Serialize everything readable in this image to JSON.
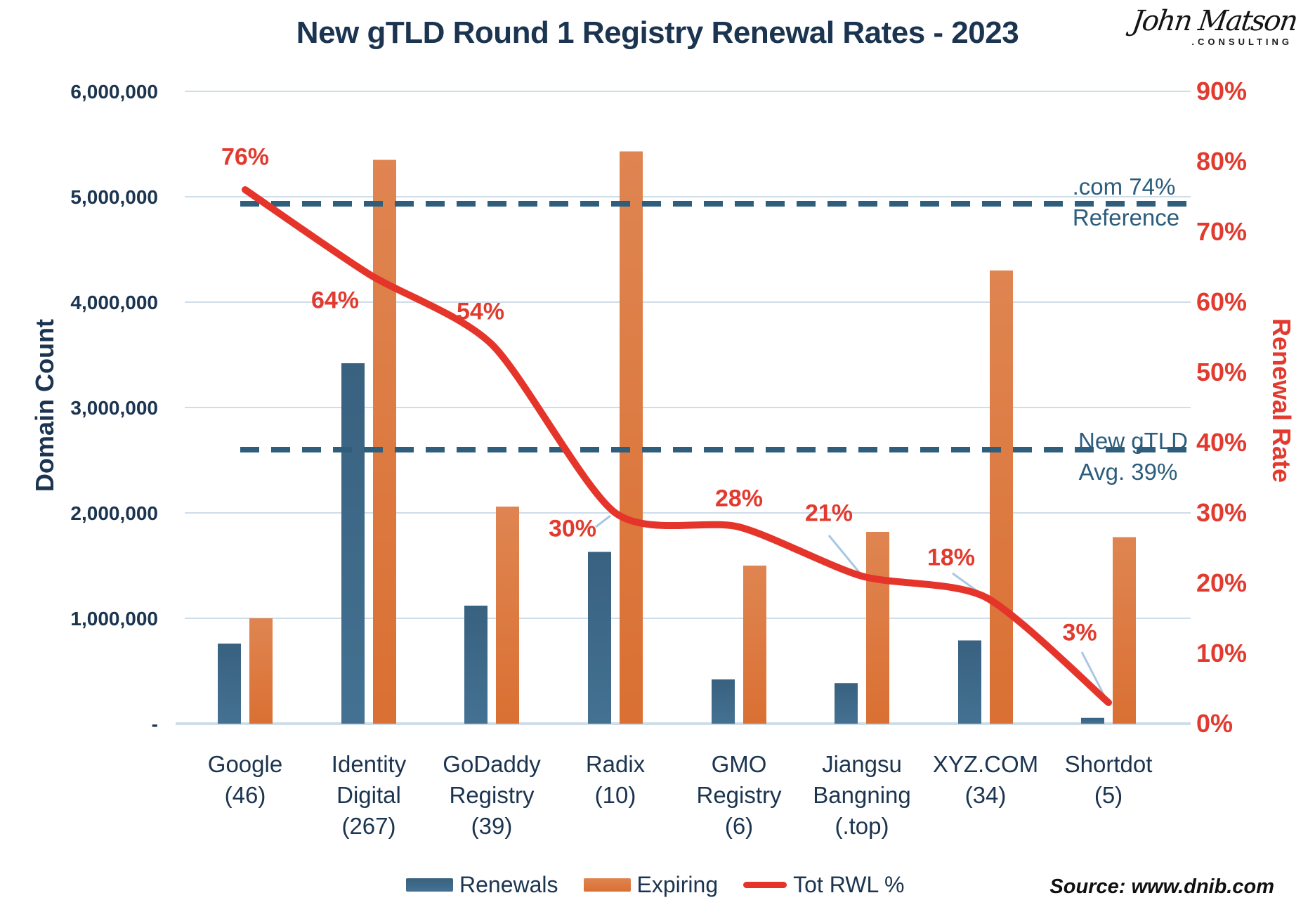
{
  "title": "New gTLD Round 1 Registry Renewal Rates - 2023",
  "logo": {
    "name": "John Matson",
    "suffix": ".CONSULTING"
  },
  "source": "Source: www.dnib.com",
  "colors": {
    "navy_text": "#1b3450",
    "teal_dashed": "#2e5e7c",
    "red": "#e5352b",
    "bar_blue": "#3d6888",
    "bar_orange": "#dc7a42",
    "gridline": "#cfdde9",
    "leader": "#a9c7e4"
  },
  "chart_data": {
    "type": "combo-bar-line",
    "title": "New gTLD Round 1 Registry Renewal Rates - 2023",
    "categories": [
      [
        "Google",
        "(46)"
      ],
      [
        "Identity",
        "Digital",
        "(267)"
      ],
      [
        "GoDaddy",
        "Registry",
        "(39)"
      ],
      [
        "Radix",
        "(10)"
      ],
      [
        "GMO",
        "Registry",
        "(6)"
      ],
      [
        "Jiangsu",
        "Bangning",
        "(.top)"
      ],
      [
        "XYZ.COM",
        "(34)"
      ],
      [
        "Shortdot",
        "(5)"
      ]
    ],
    "series": [
      {
        "name": "Renewals",
        "type": "bar",
        "axis": "left",
        "color": "#3d6888",
        "color_top": "#396180",
        "color_bottom": "#447192",
        "values": [
          760000,
          3420000,
          1120000,
          1630000,
          420000,
          385000,
          790000,
          55000
        ]
      },
      {
        "name": "Expiring",
        "type": "bar",
        "axis": "left",
        "color": "#dc7a42",
        "color_top": "#df8551",
        "color_bottom": "#da7033",
        "values": [
          1000000,
          5350000,
          2060000,
          5430000,
          1500000,
          1820000,
          4300000,
          1770000
        ]
      },
      {
        "name": "Tot RWL %",
        "type": "line",
        "axis": "right",
        "color": "#e5352b",
        "values": [
          76,
          64,
          54,
          30,
          28,
          21,
          18,
          3
        ],
        "labels": [
          "76%",
          "64%",
          "54%",
          "30%",
          "28%",
          "21%",
          "18%",
          "3%"
        ]
      }
    ],
    "axes": {
      "left": {
        "label": "Domain Count",
        "max": 6000000,
        "ticks": [
          "6,000,000",
          "5,000,000",
          "4,000,000",
          "3,000,000",
          "2,000,000",
          "1,000,000",
          "-"
        ]
      },
      "right": {
        "label": "Renewal Rate",
        "max": 90,
        "ticks": [
          "90%",
          "80%",
          "70%",
          "60%",
          "50%",
          "40%",
          "30%",
          "20%",
          "10%",
          "0%"
        ]
      }
    },
    "reference_lines": [
      {
        "value": 74,
        "label_top": ".com 74%",
        "label_bottom": "Reference"
      },
      {
        "value": 39,
        "label_top": "New gTLD",
        "label_bottom": "Avg. 39%"
      }
    ],
    "legend": [
      "Renewals",
      "Expiring",
      "Tot RWL %"
    ],
    "grid": true,
    "source": "Source: www.dnib.com"
  }
}
